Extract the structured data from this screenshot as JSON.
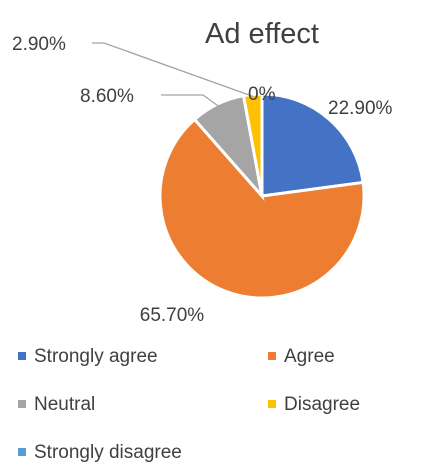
{
  "chart_data": {
    "type": "pie",
    "title": "Ad effect",
    "categories": [
      "Strongly agree",
      "Agree",
      "Neutral",
      "Disagree",
      "Strongly disagree"
    ],
    "values": [
      22.9,
      65.7,
      8.6,
      2.9,
      0
    ],
    "data_labels": [
      "22.90%",
      "65.70%",
      "8.60%",
      "2.90%",
      "0%"
    ],
    "colors": [
      "#4472C4",
      "#ED7D31",
      "#A5A5A5",
      "#FFC000",
      "#5B9BD5"
    ],
    "legend_position": "bottom"
  }
}
